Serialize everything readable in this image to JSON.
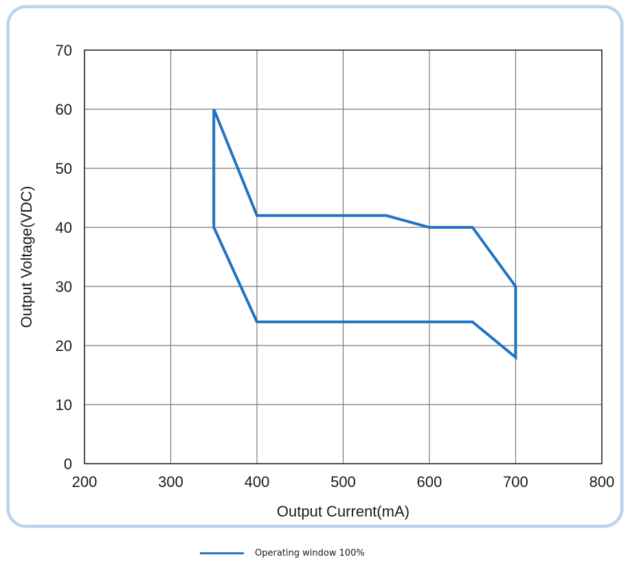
{
  "chart_data": {
    "type": "line",
    "title": "",
    "xlabel": "Output Current(mA)",
    "ylabel": "Output Voltage(VDC)",
    "xlim": [
      200,
      800
    ],
    "ylim": [
      0,
      70
    ],
    "x_ticks": [
      200,
      300,
      400,
      500,
      600,
      700,
      800
    ],
    "y_ticks": [
      0,
      10,
      20,
      30,
      40,
      50,
      60,
      70
    ],
    "grid": true,
    "legend_position": "bottom",
    "series": [
      {
        "name": "Operating window 100%",
        "color": "#1f73c1",
        "closed": true,
        "x": [
          350,
          400,
          550,
          600,
          650,
          700,
          700,
          650,
          400,
          350,
          350
        ],
        "y": [
          60,
          42,
          42,
          40,
          40,
          30,
          18,
          24,
          24,
          40,
          60
        ]
      }
    ]
  }
}
